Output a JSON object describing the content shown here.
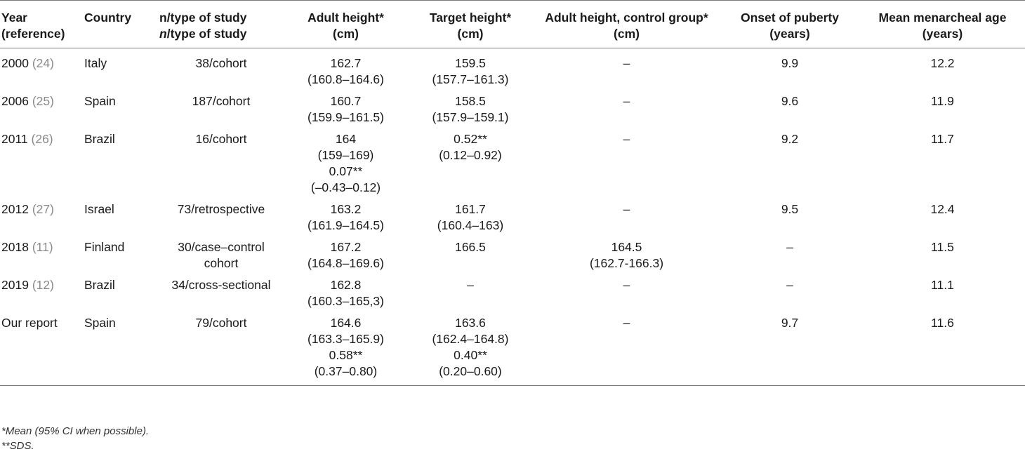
{
  "table": {
    "headers": [
      {
        "lines": [
          "Year",
          "(reference)"
        ],
        "align": "left"
      },
      {
        "lines": [
          "Country"
        ],
        "align": "left"
      },
      {
        "lines": [
          "n/type of study"
        ],
        "align": "left",
        "italic_prefix": "n",
        "rest": "/type of study"
      },
      {
        "lines": [
          "Adult height*",
          "(cm)"
        ],
        "align": "center"
      },
      {
        "lines": [
          "Target height*",
          "(cm)"
        ],
        "align": "center"
      },
      {
        "lines": [
          "Adult height, control group*",
          "(cm)"
        ],
        "align": "center"
      },
      {
        "lines": [
          "Onset of puberty",
          "(years)"
        ],
        "align": "center"
      },
      {
        "lines": [
          "Mean menarcheal age",
          "(years)"
        ],
        "align": "center"
      }
    ],
    "rows": [
      {
        "year": "2000",
        "ref": "(24)",
        "country": "Italy",
        "study": "38/cohort",
        "adult": [
          "162.7",
          "(160.8–164.6)"
        ],
        "target": [
          "159.5",
          "(157.7–161.3)"
        ],
        "control": [
          "–"
        ],
        "onset": "9.9",
        "menarche": "12.2"
      },
      {
        "year": "2006",
        "ref": "(25)",
        "country": "Spain",
        "study": "187/cohort",
        "adult": [
          "160.7",
          "(159.9–161.5)"
        ],
        "target": [
          "158.5",
          "(157.9–159.1)"
        ],
        "control": [
          "–"
        ],
        "onset": "9.6",
        "menarche": "11.9"
      },
      {
        "year": "2011",
        "ref": "(26)",
        "country": "Brazil",
        "study": "16/cohort",
        "adult": [
          "164",
          "(159–169)",
          "0.07**",
          "(–0.43–0.12)"
        ],
        "target": [
          "0.52**",
          "(0.12–0.92)"
        ],
        "control": [
          "–"
        ],
        "onset": "9.2",
        "menarche": "11.7"
      },
      {
        "year": "2012",
        "ref": "(27)",
        "country": "Israel",
        "study": "73/retrospective",
        "adult": [
          "163.2",
          "(161.9–164.5)"
        ],
        "target": [
          "161.7",
          "(160.4–163)"
        ],
        "control": [
          "–"
        ],
        "onset": "9.5",
        "menarche": "12.4"
      },
      {
        "year": "2018",
        "ref": "(11)",
        "country": "Finland",
        "study": "30/case–control cohort",
        "study_lines": [
          "30/case–control",
          "cohort"
        ],
        "adult": [
          "167.2",
          "(164.8–169.6)"
        ],
        "target": [
          "166.5"
        ],
        "control": [
          "164.5",
          "(162.7-166.3)"
        ],
        "onset": "–",
        "menarche": "11.5"
      },
      {
        "year": "2019",
        "ref": "(12)",
        "country": "Brazil",
        "study": "34/cross-sectional",
        "adult": [
          "162.8",
          "(160.3–165,3)"
        ],
        "target": [
          "–"
        ],
        "control": [
          "–"
        ],
        "onset": "–",
        "menarche": "11.1"
      },
      {
        "year": "Our report",
        "ref": "",
        "country": "Spain",
        "study": "79/cohort",
        "adult": [
          "164.6",
          "(163.3–165.9)",
          "0.58**",
          "(0.37–0.80)"
        ],
        "target": [
          "163.6",
          "(162.4–164.8)",
          "0.40**",
          "(0.20–0.60)"
        ],
        "control": [
          "–"
        ],
        "onset": "9.7",
        "menarche": "11.6"
      }
    ],
    "notes": [
      "*Mean (95% CI when possible).",
      "**SDS."
    ]
  }
}
